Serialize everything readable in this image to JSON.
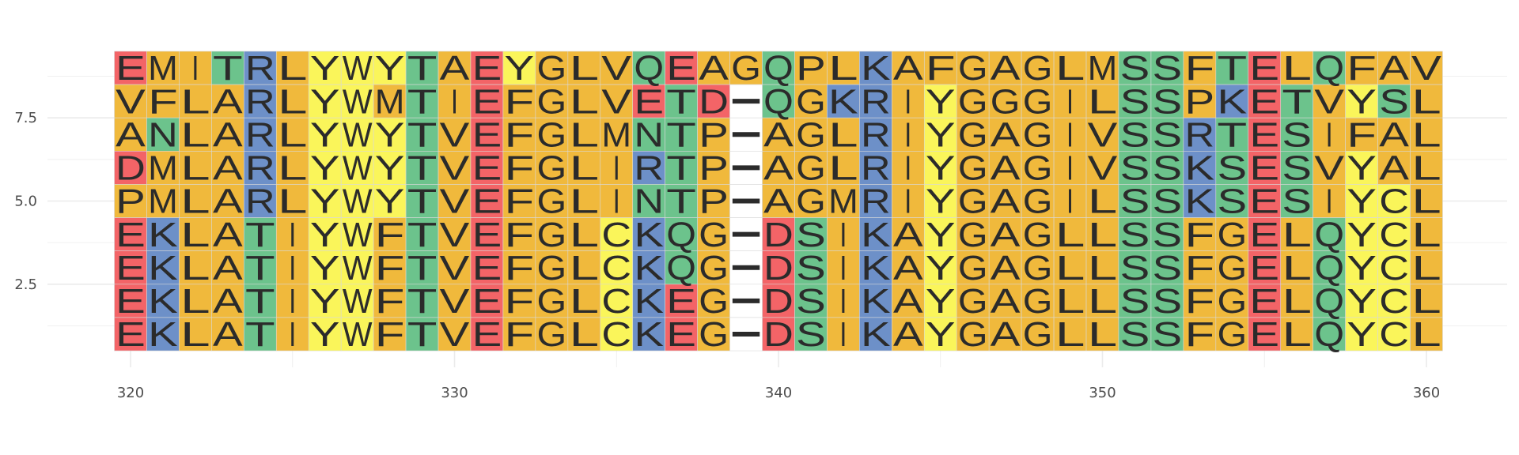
{
  "chart_data": {
    "type": "heatmap",
    "title": "",
    "xlabel": "",
    "ylabel": "",
    "xlim": [
      319.5,
      360.5
    ],
    "ylim": [
      0.5,
      9.5
    ],
    "x_start": 320,
    "x_ticks": [
      320,
      330,
      340,
      350,
      360
    ],
    "x_tick_labels": [
      "320",
      "330",
      "340",
      "350",
      "360"
    ],
    "y_ticks": [
      2.5,
      5.0,
      7.5
    ],
    "y_tick_labels": [
      "2.5",
      "5.0",
      "7.5"
    ],
    "grid": true,
    "legend": "none",
    "sequences": [
      {
        "row": 9,
        "residues": "EMITRLYWYTAEYGLVQEAGQPLKAFGAGLMSSFTELQFAV"
      },
      {
        "row": 8,
        "residues": "VFLARLYWMTIEFGLVETD-QGKRIYGGGILSSPKETVYSL"
      },
      {
        "row": 7,
        "residues": "ANLARLYWYTVEFGLMNTP-AGLRIYGAGIVSSRTESIFAL"
      },
      {
        "row": 6,
        "residues": "DMLARLYWYTVEFGLIRTP-AGLRIYGAGIVSSKSESVYAL"
      },
      {
        "row": 5,
        "residues": "PMLARLYWYTVEFGLINTP-AGMRIYGAGILSSKSESIYCL"
      },
      {
        "row": 4,
        "residues": "EKLATIYWFTVEFGLCKQG-DSIKAYGAGLLSSFGELQYCL"
      },
      {
        "row": 3,
        "residues": "EKLATIYWFTVEFGLCKQG-DSIKAYGAGLLSSFGELQYCL"
      },
      {
        "row": 2,
        "residues": "EKLATIYWFTVEFGLCKEG-DSIKAYGAGLLSSFGELQYCL"
      },
      {
        "row": 1,
        "residues": "EKLATIYWFTVEFGLCKEG-DSIKAYGAGLLSSFGELQYCL"
      }
    ],
    "color_scheme": {
      "hydrophobic": {
        "residues": "AVLIMFGP",
        "color": "#F0B93C"
      },
      "aromatic_polar": {
        "residues": "YWC",
        "color": "#FAF55A"
      },
      "polar": {
        "residues": "STNQ",
        "color": "#6CC38C"
      },
      "positive": {
        "residues": "RKH",
        "color": "#6D90C8"
      },
      "negative": {
        "residues": "DE",
        "color": "#F36467"
      },
      "gap": {
        "residues": "-",
        "color": "#FFFFFF"
      }
    },
    "colors": {
      "background": "#FFFFFF",
      "grid": "#EBEBEB",
      "tick_text": "#4D4D4D",
      "letter": "#2B2B2B",
      "tile_border": "#D9D9D9"
    }
  }
}
